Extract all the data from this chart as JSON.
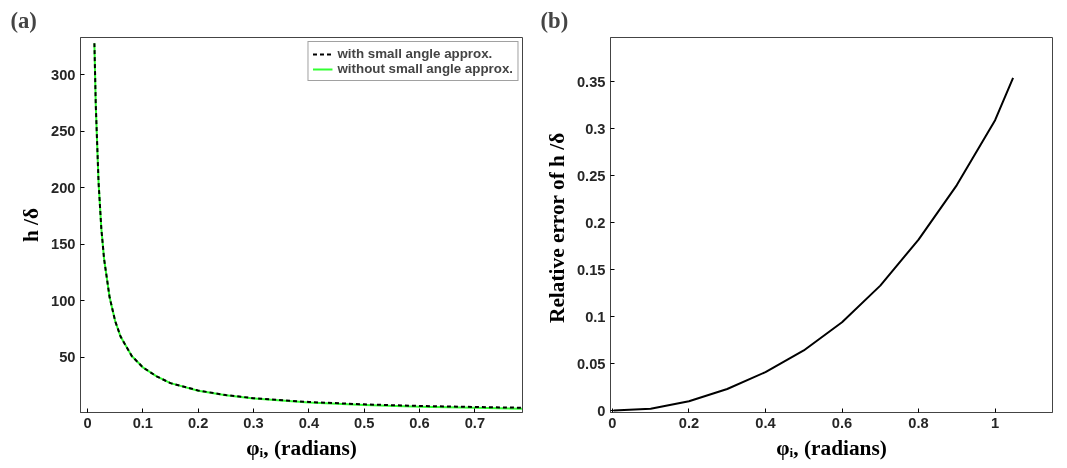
{
  "chart_data": [
    {
      "type": "line",
      "title": "(a)",
      "xlabel": "φᵢ, (radians)",
      "ylabel": "h /δ",
      "x": [
        0.0125,
        0.015,
        0.02,
        0.025,
        0.03,
        0.04,
        0.05,
        0.06,
        0.08,
        0.1,
        0.125,
        0.15,
        0.2,
        0.25,
        0.3,
        0.4,
        0.5,
        0.6,
        0.7,
        0.785
      ],
      "series": [
        {
          "name": "with small angle approx.",
          "color": "#000000",
          "line_style": "dashed",
          "values": [
            328,
            273,
            205,
            164,
            137,
            103,
            82,
            68,
            51,
            41,
            33,
            27,
            20.5,
            16.4,
            13.7,
            10.3,
            8.2,
            6.8,
            5.9,
            5.2
          ]
        },
        {
          "name": "without small angle approx.",
          "color": "#33ff33",
          "line_style": "solid",
          "values": [
            328,
            273,
            205,
            164,
            137,
            103,
            82,
            68,
            51,
            41,
            33,
            27,
            20.3,
            16.2,
            13.4,
            9.9,
            7.7,
            6.2,
            5.1,
            4.3
          ]
        }
      ],
      "xlim": [
        -0.0126,
        0.786
      ],
      "ylim": [
        1,
        333
      ],
      "xticks": [
        0,
        0.1,
        0.2,
        0.3,
        0.4,
        0.5,
        0.6,
        0.7
      ],
      "yticks": [
        50,
        100,
        150,
        200,
        250,
        300
      ],
      "grid": false,
      "legend": "top right"
    },
    {
      "type": "line",
      "title": "(b)",
      "xlabel": "φᵢ, (radians)",
      "ylabel": "Relative error of  h /δ",
      "x": [
        0.003,
        0.1,
        0.2,
        0.3,
        0.4,
        0.5,
        0.6,
        0.7,
        0.8,
        0.9,
        1.0,
        1.047
      ],
      "series": [
        {
          "color": "#000000",
          "line_style": "solid",
          "values": [
            0,
            0.002,
            0.01,
            0.023,
            0.041,
            0.064,
            0.094,
            0.133,
            0.182,
            0.24,
            0.309,
            0.354
          ]
        }
      ],
      "xlim": [
        -0.005,
        1.15
      ],
      "ylim": [
        -0.002,
        0.397
      ],
      "xticks": [
        0,
        0.2,
        0.4,
        0.6,
        0.8,
        1
      ],
      "yticks": [
        0,
        0.05,
        0.1,
        0.15,
        0.2,
        0.25,
        0.3,
        0.35
      ],
      "grid": false,
      "legend": false
    }
  ]
}
